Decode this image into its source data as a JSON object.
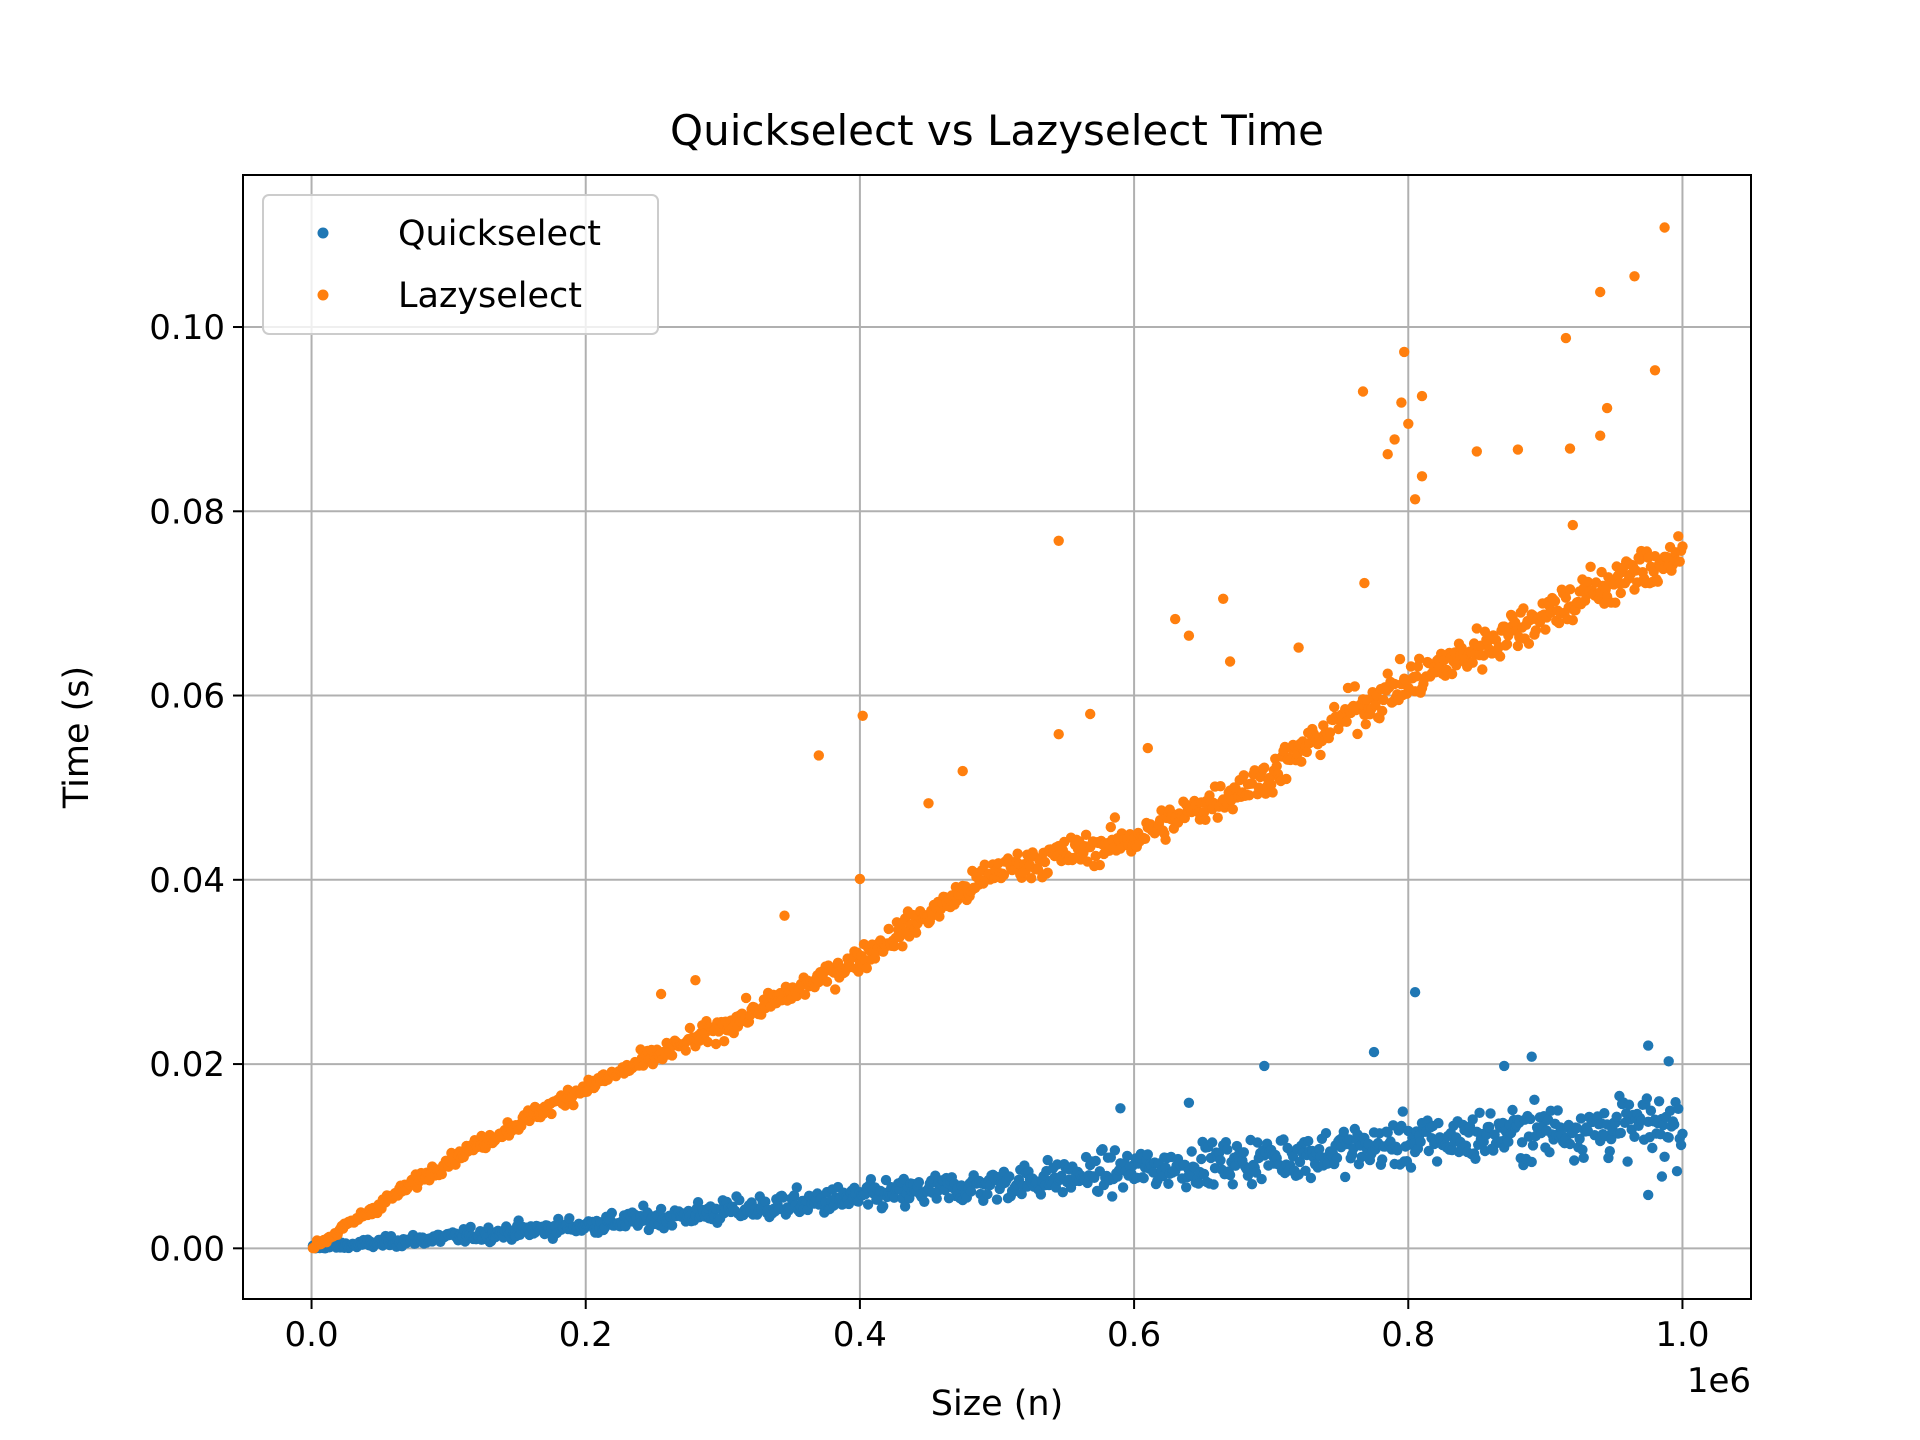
{
  "chart_data": {
    "type": "scatter",
    "title": "Quickselect vs Lazyselect Time",
    "xlabel": "Size (n)",
    "ylabel": "Time (s)",
    "x_offset_label": "1e6",
    "x_scale": 1000000,
    "xlim": [
      -50000,
      1050000
    ],
    "ylim": [
      -0.0055,
      0.1165
    ],
    "xticks": [
      0,
      200000,
      400000,
      600000,
      800000,
      1000000
    ],
    "xtick_labels": [
      "0.0",
      "0.2",
      "0.4",
      "0.6",
      "0.8",
      "1.0"
    ],
    "yticks": [
      0,
      0.02,
      0.04,
      0.06,
      0.08,
      0.1
    ],
    "ytick_labels": [
      "0.00",
      "0.02",
      "0.04",
      "0.06",
      "0.08",
      "0.10"
    ],
    "grid": true,
    "legend_position": "top-left",
    "series": [
      {
        "name": "Quickselect",
        "color": "#1f77b4",
        "points_description": "1000 sizes from 1,000 to 1,000,000",
        "x_start": 1000,
        "x_step": 1000,
        "count": 1000,
        "trend_points": [
          [
            0,
            0.0
          ],
          [
            100000,
            0.0012
          ],
          [
            200000,
            0.0025
          ],
          [
            300000,
            0.004
          ],
          [
            400000,
            0.0055
          ],
          [
            500000,
            0.007
          ],
          [
            600000,
            0.0085
          ],
          [
            700000,
            0.0098
          ],
          [
            800000,
            0.0115
          ],
          [
            900000,
            0.0128
          ],
          [
            1000000,
            0.0135
          ]
        ],
        "outliers": [
          [
            805000,
            0.0278
          ],
          [
            975000,
            0.022
          ],
          [
            775000,
            0.0213
          ],
          [
            890000,
            0.0208
          ],
          [
            695000,
            0.0198
          ],
          [
            990000,
            0.0203
          ],
          [
            870000,
            0.0198
          ],
          [
            590000,
            0.0152
          ],
          [
            640000,
            0.0158
          ],
          [
            985000,
            0.0078
          ],
          [
            975000,
            0.0058
          ]
        ]
      },
      {
        "name": "Lazyselect",
        "color": "#ff7f0e",
        "x_start": 1000,
        "x_step": 1000,
        "count": 1000,
        "trend_points": [
          [
            0,
            0.0
          ],
          [
            100000,
            0.0095
          ],
          [
            200000,
            0.0175
          ],
          [
            300000,
            0.024
          ],
          [
            400000,
            0.0315
          ],
          [
            500000,
            0.041
          ],
          [
            600000,
            0.0445
          ],
          [
            700000,
            0.0515
          ],
          [
            760000,
            0.0585
          ],
          [
            795000,
            0.061
          ],
          [
            830000,
            0.0635
          ],
          [
            900000,
            0.069
          ],
          [
            1000000,
            0.0755
          ]
        ],
        "outliers": [
          [
            987000,
            0.1108
          ],
          [
            965000,
            0.1055
          ],
          [
            940000,
            0.1038
          ],
          [
            915000,
            0.0988
          ],
          [
            797000,
            0.0973
          ],
          [
            980000,
            0.0953
          ],
          [
            767000,
            0.093
          ],
          [
            795000,
            0.0918
          ],
          [
            810000,
            0.0925
          ],
          [
            945000,
            0.0912
          ],
          [
            790000,
            0.0878
          ],
          [
            800000,
            0.0895
          ],
          [
            850000,
            0.0865
          ],
          [
            880000,
            0.0867
          ],
          [
            918000,
            0.0868
          ],
          [
            785000,
            0.0862
          ],
          [
            940000,
            0.0882
          ],
          [
            810000,
            0.0838
          ],
          [
            805000,
            0.0813
          ],
          [
            545000,
            0.0768
          ],
          [
            768000,
            0.0722
          ],
          [
            665000,
            0.0705
          ],
          [
            630000,
            0.0683
          ],
          [
            640000,
            0.0665
          ],
          [
            670000,
            0.0637
          ],
          [
            370000,
            0.0535
          ],
          [
            402000,
            0.0578
          ],
          [
            568000,
            0.058
          ],
          [
            545000,
            0.0558
          ],
          [
            400000,
            0.0401
          ],
          [
            345000,
            0.0361
          ],
          [
            450000,
            0.0483
          ],
          [
            475000,
            0.0518
          ],
          [
            255000,
            0.0276
          ],
          [
            280000,
            0.0291
          ],
          [
            920000,
            0.0785
          ],
          [
            610000,
            0.0543
          ],
          [
            720000,
            0.0652
          ]
        ]
      }
    ]
  }
}
